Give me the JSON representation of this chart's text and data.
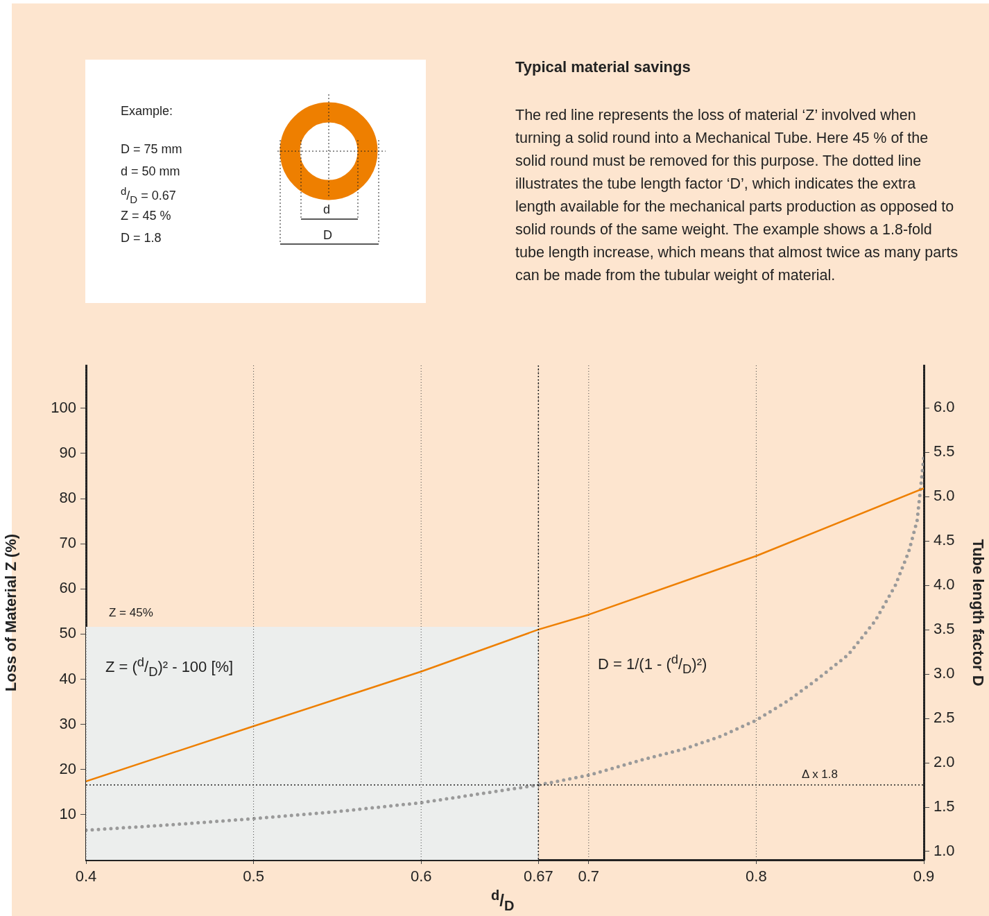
{
  "chart_data": {
    "type": "line",
    "title": "Typical material savings",
    "subtitle": "The red line represents the loss of material ‘Z’ involved when turning a solid round into a Mechanical Tube. Here 45 % of the solid round must be removed for this purpose. The dotted line illustrates the tube length factor ‘D’, which indicates the extra length available for the mechanical parts production as opposed to solid rounds of the same weight. The example shows a 1.8-fold tube length increase, which means that almost twice as many parts can be made from the tubular weight of material.",
    "xlabel": "$^{d}$/$_{D}$",
    "ylabel": "Loss of Material Z (%)",
    "y2label": "Tube length factor D",
    "xlim": [
      0.4,
      0.9
    ],
    "xticks": [
      0.4,
      0.5,
      0.6,
      0.67,
      0.7,
      0.8,
      0.9
    ],
    "ylim": [
      0,
      109.5
    ],
    "yticks": [
      10,
      20,
      30,
      40,
      50,
      60,
      70,
      80,
      90,
      100
    ],
    "y2lim": [
      0.906,
      6.48
    ],
    "y2ticks": [
      {
        "value": 1,
        "label": "1.0"
      },
      {
        "value": 1.5,
        "label": "1.5"
      },
      {
        "value": 2,
        "label": "2.0"
      },
      {
        "value": 2.5,
        "label": "2.5"
      },
      {
        "value": 3,
        "label": "3.0"
      },
      {
        "value": 3.5,
        "label": "3.5"
      },
      {
        "value": 4,
        "label": "4.0"
      },
      {
        "value": 4.5,
        "label": "4.5"
      },
      {
        "value": 5,
        "label": "5.0"
      },
      {
        "value": 5.5,
        "label": "5.5"
      },
      {
        "value": 6,
        "label": "6.0"
      }
    ],
    "grid": "x",
    "legend": false,
    "series": [
      {
        "type": "area",
        "color": "#eceeed",
        "x": [
          0.4,
          0.67
        ],
        "values": [
          51.6,
          51.6
        ]
      },
      {
        "type": "line",
        "color": "#ee7f00",
        "line_style": "solid",
        "x": [
          0.4,
          0.5,
          0.6,
          0.67,
          0.7,
          0.8,
          0.9
        ],
        "values": [
          17.4,
          29.6,
          41.7,
          51.0,
          54.3,
          67.3,
          82.3
        ]
      },
      {
        "type": "line",
        "axis": "y2",
        "color": "#9a9a9a",
        "line_style": "dotted",
        "x": [
          0.4,
          0.45,
          0.5,
          0.55,
          0.6,
          0.67,
          0.7,
          0.733,
          0.756,
          0.779,
          0.8,
          0.819,
          0.837,
          0.855,
          0.871,
          0.883,
          0.891,
          0.896,
          0.9
        ],
        "values": [
          1.24,
          1.3,
          1.37,
          1.45,
          1.55,
          1.75,
          1.86,
          2.04,
          2.15,
          2.3,
          2.48,
          2.7,
          2.95,
          3.22,
          3.6,
          4.0,
          4.38,
          4.73,
          5.44
        ]
      }
    ],
    "ref_lines": [
      {
        "axis": "x",
        "value": 0.67,
        "line_style": "dotted",
        "color": "#222222"
      },
      {
        "axis": "y2",
        "value": 1.75,
        "label": "Δ x 1.8",
        "line_style": "dotted",
        "color": "#222222"
      }
    ],
    "annotations": [
      "Example:",
      "D = 75 mm",
      "d = 50 mm",
      "$^{d}$/$_{D}$ = 0.67",
      "Z = 45 %",
      "D = 1.8",
      "d",
      "D",
      "Z = ($^{d}$/$_{D}$)² - 100 [%]",
      "D = 1/(1 - ($^{d}$/$_{D}$)²)",
      "Z = 45%"
    ]
  }
}
